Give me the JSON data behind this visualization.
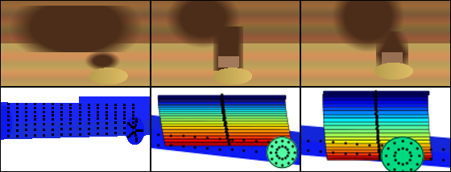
{
  "figure_width": 5.6,
  "figure_height": 2.14,
  "dpi": 100,
  "panel_border_color": "#000000",
  "outer_border_color": "#000000"
}
